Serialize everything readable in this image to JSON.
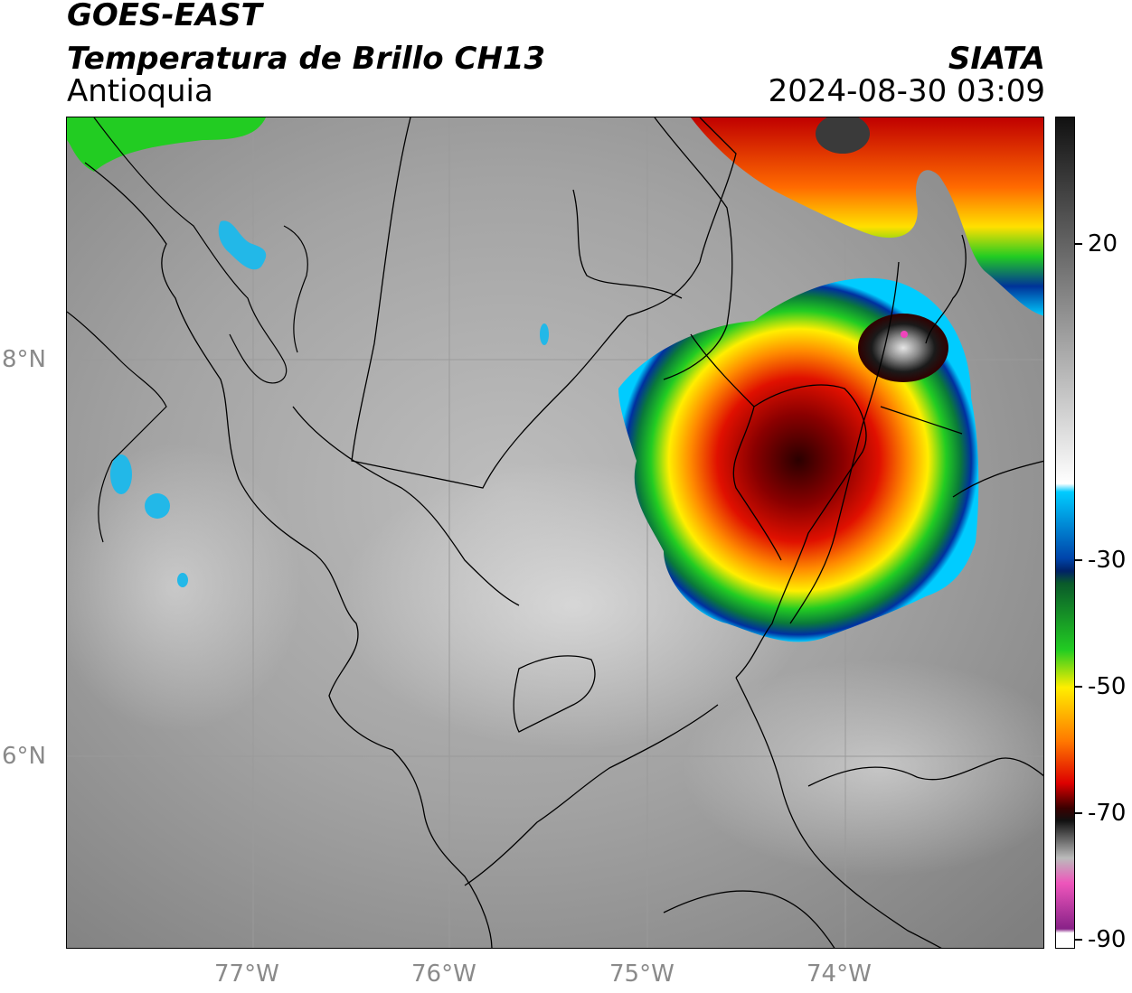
{
  "header": {
    "satellite": "GOES-EAST",
    "product": "Temperatura de Brillo CH13",
    "region": "Antioquia",
    "brand": "SIATA",
    "timestamp": "2024-08-30 03:09"
  },
  "map": {
    "lon_labels": [
      "77°W",
      "76°W",
      "75°W",
      "74°W"
    ],
    "lat_labels": [
      "8°N",
      "6°N"
    ],
    "features": [
      "gray-cloud-field",
      "convective-cell-main",
      "convective-cell-north",
      "department-boundaries",
      "coastline"
    ]
  },
  "colorbar": {
    "labels": [
      "20",
      "-30",
      "-50",
      "-70",
      "-90"
    ],
    "colors": {
      "gray_range": [
        "#111111",
        "#ffffff"
      ],
      "cyan": "#00ccff",
      "blue": "#002288",
      "green": "#22cc22",
      "yellow": "#ffee00",
      "orange": "#ff7700",
      "red": "#dd0000",
      "dark_red": "#3a0000",
      "magenta": "#ee44bb",
      "purple": "#882288"
    }
  }
}
